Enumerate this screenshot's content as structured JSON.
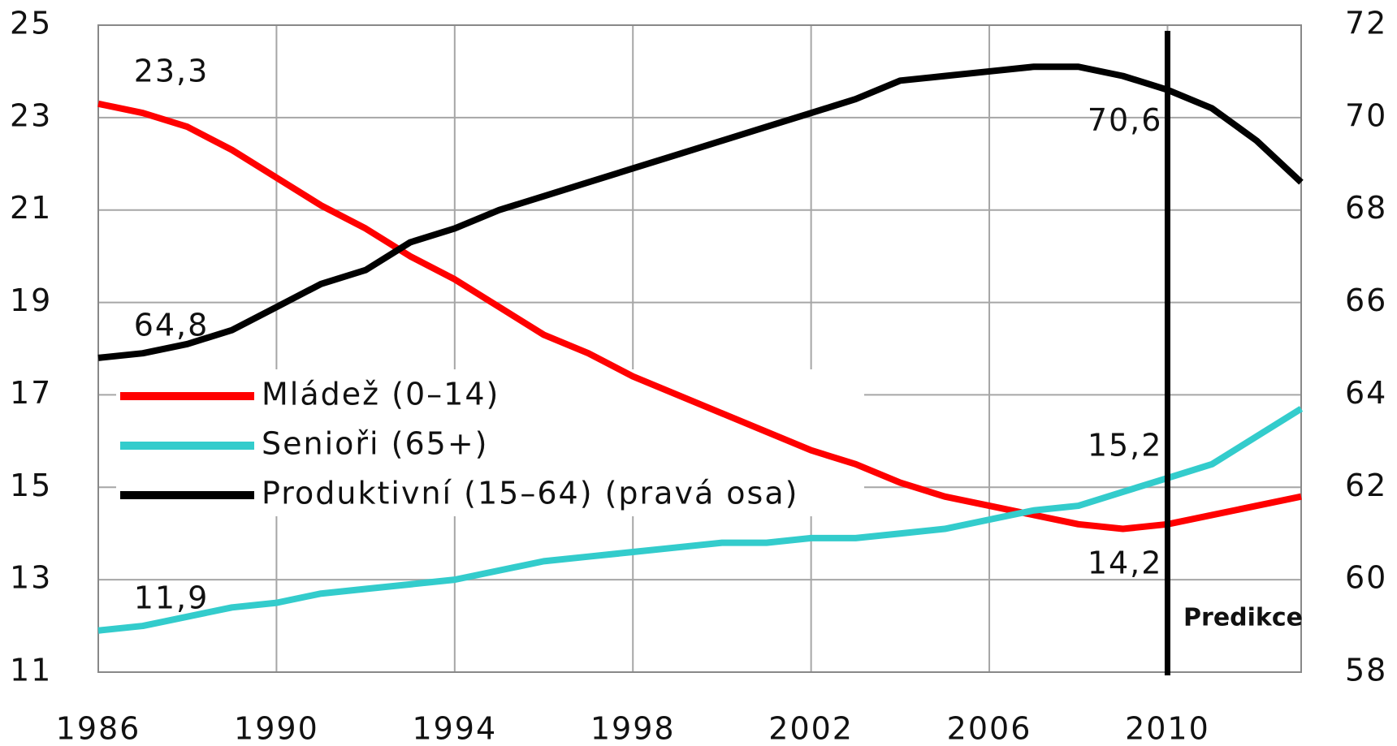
{
  "chart_data": {
    "type": "line",
    "x": [
      1986,
      1987,
      1988,
      1989,
      1990,
      1991,
      1992,
      1993,
      1994,
      1995,
      1996,
      1997,
      1998,
      1999,
      2000,
      2001,
      2002,
      2003,
      2004,
      2005,
      2006,
      2007,
      2008,
      2009,
      2010,
      2011,
      2012,
      2013
    ],
    "series": [
      {
        "name": "Mládež (0–14)",
        "color": "#ff0000",
        "axis": "y",
        "values": [
          23.3,
          23.1,
          22.8,
          22.3,
          21.7,
          21.1,
          20.6,
          20.0,
          19.5,
          18.9,
          18.3,
          17.9,
          17.4,
          17.0,
          16.6,
          16.2,
          15.8,
          15.5,
          15.1,
          14.8,
          14.6,
          14.4,
          14.2,
          14.1,
          14.2,
          14.4,
          14.6,
          14.8
        ],
        "value_labels": [
          "23,3",
          null,
          null,
          null,
          null,
          null,
          null,
          null,
          null,
          null,
          null,
          null,
          null,
          null,
          null,
          null,
          null,
          null,
          null,
          null,
          null,
          null,
          null,
          null,
          "14,2",
          null,
          null,
          null
        ]
      },
      {
        "name": "Senioři (65+)",
        "color": "#33cccc",
        "axis": "y",
        "values": [
          11.9,
          12.0,
          12.2,
          12.4,
          12.5,
          12.7,
          12.8,
          12.9,
          13.0,
          13.2,
          13.4,
          13.5,
          13.6,
          13.7,
          13.8,
          13.8,
          13.9,
          13.9,
          14.0,
          14.1,
          14.3,
          14.5,
          14.6,
          14.9,
          15.2,
          15.5,
          16.1,
          16.7
        ],
        "value_labels": [
          "11,9",
          null,
          null,
          null,
          null,
          null,
          null,
          null,
          null,
          null,
          null,
          null,
          null,
          null,
          null,
          null,
          null,
          null,
          null,
          null,
          null,
          null,
          null,
          null,
          "15,2",
          null,
          null,
          null
        ]
      },
      {
        "name": "Produktivní (15–64) (pravá osa)",
        "color": "#000000",
        "axis": "y2",
        "values": [
          64.8,
          64.9,
          65.1,
          65.4,
          65.9,
          66.4,
          66.7,
          67.3,
          67.6,
          68.0,
          68.3,
          68.6,
          68.9,
          69.2,
          69.5,
          69.8,
          70.1,
          70.4,
          70.8,
          70.9,
          71.0,
          71.1,
          71.1,
          70.9,
          70.6,
          70.2,
          69.5,
          68.6
        ],
        "value_labels": [
          "64,8",
          null,
          null,
          null,
          null,
          null,
          null,
          null,
          null,
          null,
          null,
          null,
          null,
          null,
          null,
          null,
          null,
          null,
          null,
          null,
          null,
          null,
          null,
          null,
          "70,6",
          null,
          null,
          null
        ]
      }
    ],
    "xlim": [
      1986,
      2013
    ],
    "xticks": [
      1986,
      1990,
      1994,
      1998,
      2002,
      2006,
      2010
    ],
    "ylim": [
      11,
      25
    ],
    "yticks": [
      11,
      13,
      15,
      17,
      19,
      21,
      23,
      25
    ],
    "y2lim": [
      58,
      72
    ],
    "y2ticks": [
      58,
      60,
      62,
      64,
      66,
      68,
      70,
      72
    ],
    "grid": true,
    "annotations": [
      {
        "text": "Predikce",
        "x": 2010
      }
    ]
  }
}
